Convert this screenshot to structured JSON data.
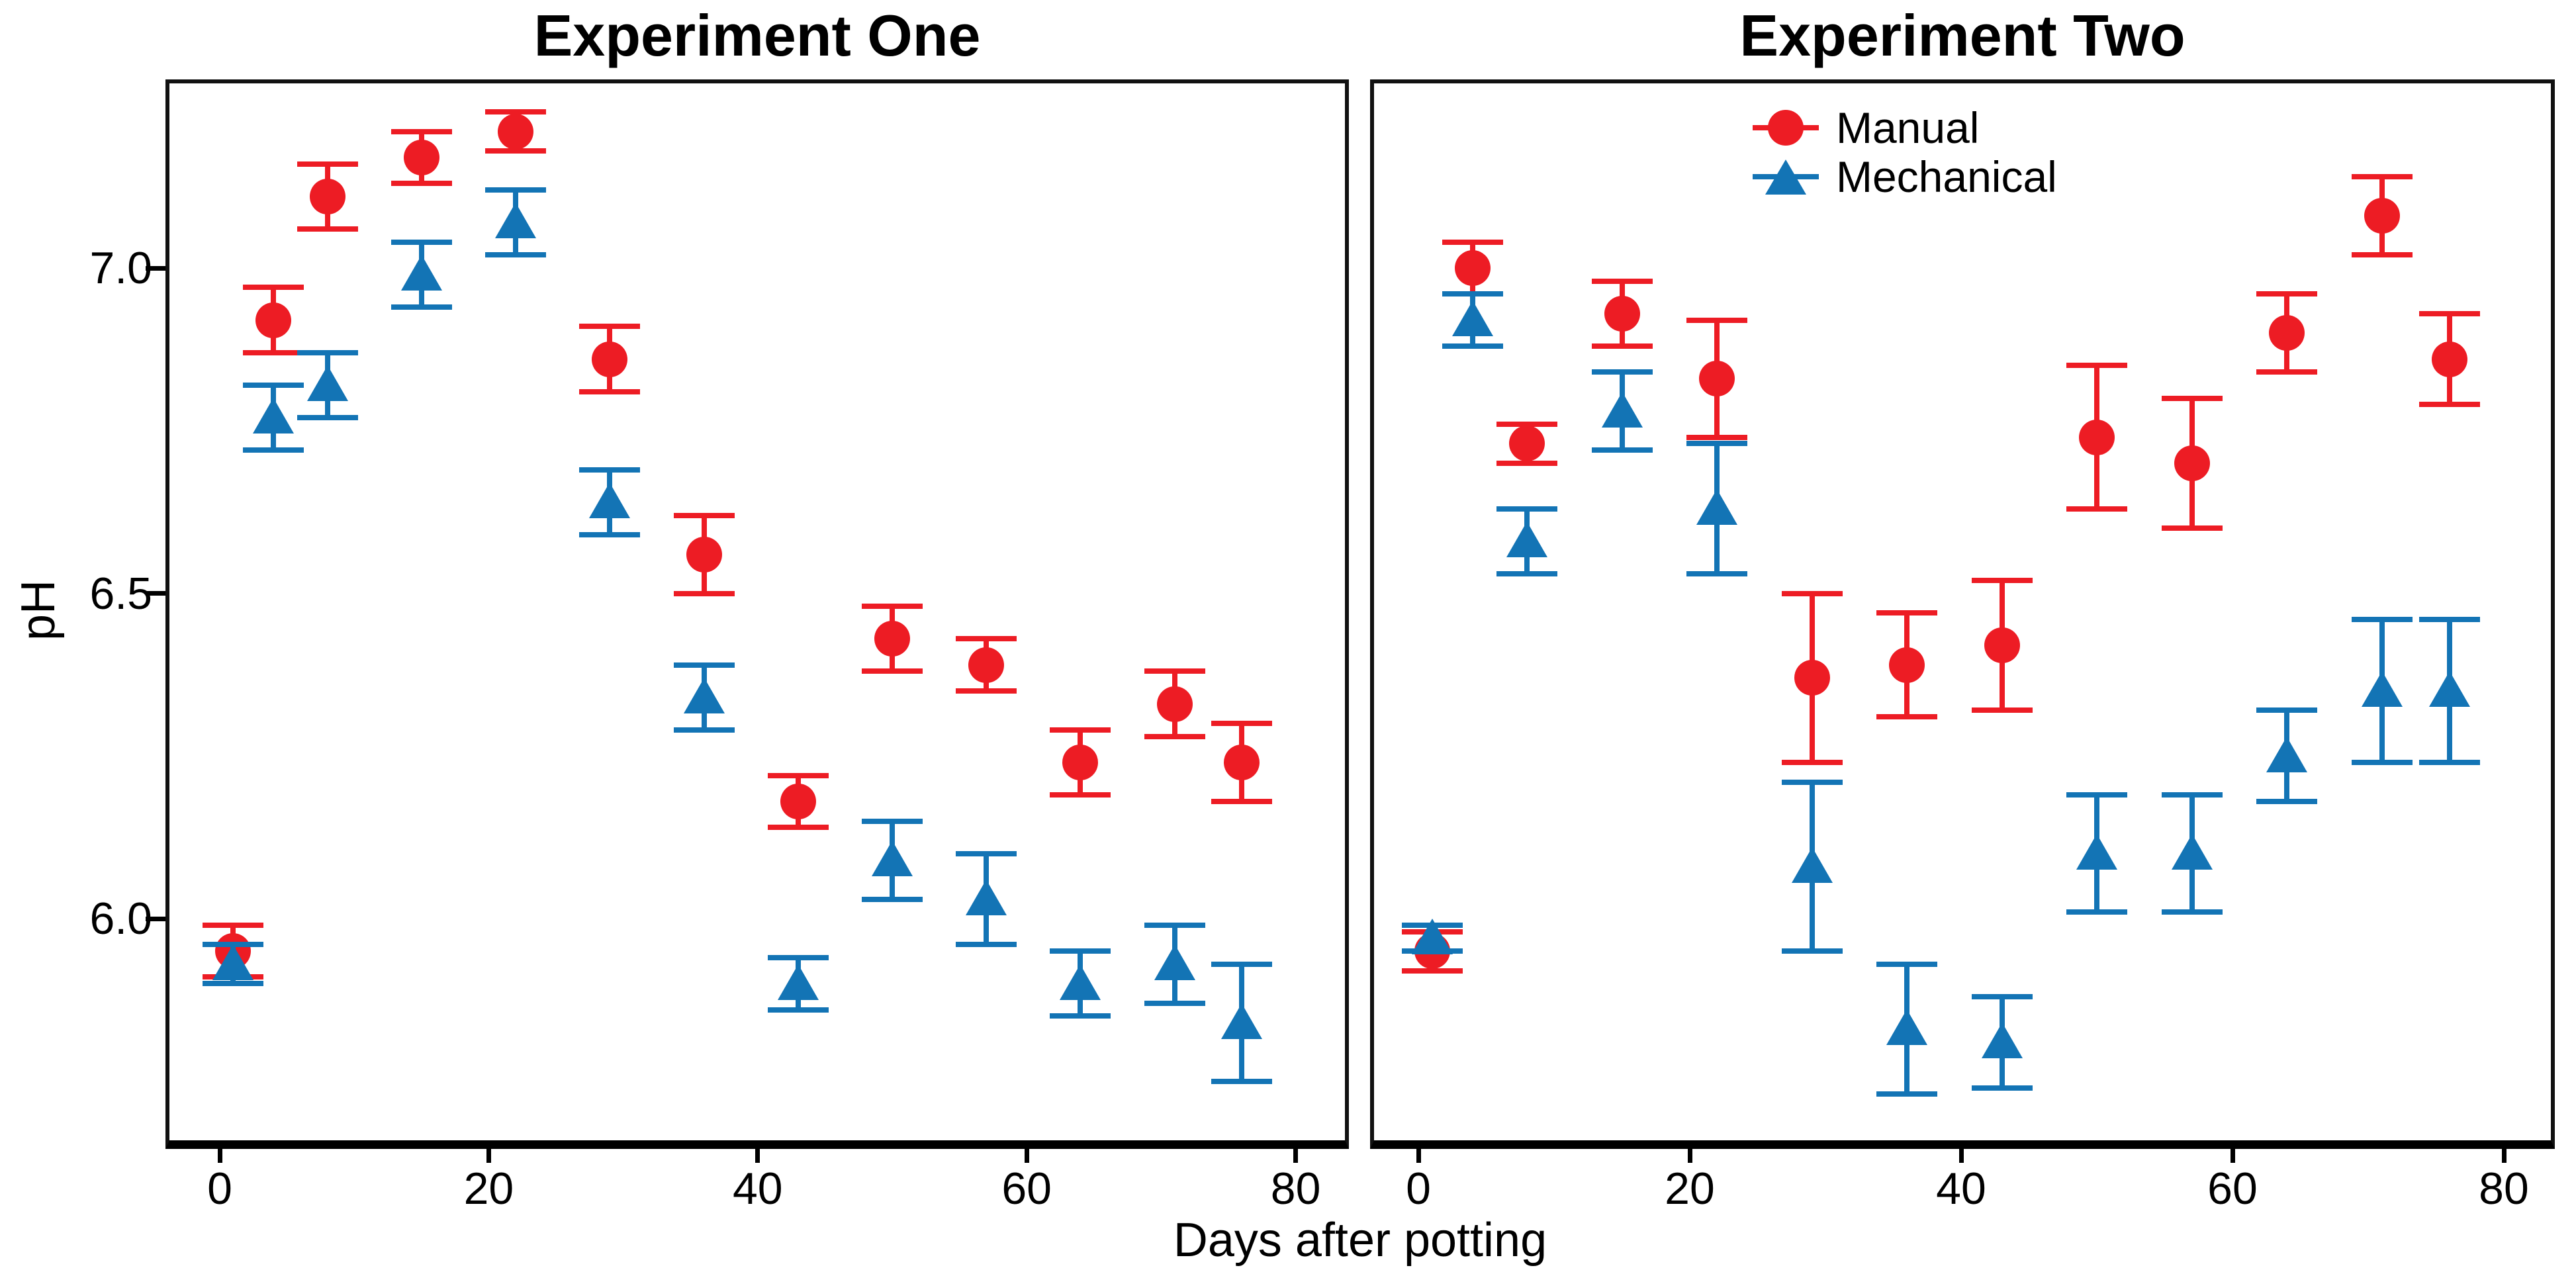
{
  "chart_data": {
    "type": "scatter",
    "title": "",
    "xlabel": "Days after potting",
    "ylabel": "pH",
    "xlim": [
      -4,
      84
    ],
    "ylim": [
      5.66,
      7.29
    ],
    "grid": false,
    "x_ticks": [
      0,
      20,
      40,
      60,
      80
    ],
    "x_tick_labels": [
      "0",
      "20",
      "40",
      "60",
      "80"
    ],
    "y_ticks": [
      6.0,
      6.5,
      7.0
    ],
    "y_tick_labels": [
      "6.0",
      "6.5",
      "7.0"
    ],
    "days": [
      1,
      4,
      8,
      15,
      22,
      29,
      36,
      43,
      50,
      57,
      64,
      71,
      76
    ],
    "colors": {
      "manual": "#ED1C24",
      "mechanical": "#1374B5"
    },
    "legend": {
      "position": "top-inside-right-panel",
      "entries": [
        {
          "label": "Manual",
          "marker": "circle",
          "color": "#ED1C24"
        },
        {
          "label": "Mechanical",
          "marker": "triangle",
          "color": "#1374B5"
        }
      ]
    },
    "facets": [
      {
        "title": "Experiment One",
        "series": [
          {
            "name": "Manual",
            "marker": "circle",
            "color": "#ED1C24",
            "values": [
              5.95,
              6.92,
              7.11,
              7.17,
              7.21,
              6.86,
              6.56,
              6.18,
              6.43,
              6.39,
              6.24,
              6.33,
              6.24
            ],
            "errors": [
              0.04,
              0.05,
              0.05,
              0.04,
              0.03,
              0.05,
              0.06,
              0.04,
              0.05,
              0.04,
              0.05,
              0.05,
              0.06
            ]
          },
          {
            "name": "Mechanical",
            "marker": "triangle",
            "color": "#1374B5",
            "values": [
              5.93,
              6.77,
              6.82,
              6.99,
              7.07,
              6.64,
              6.34,
              5.9,
              6.09,
              6.03,
              5.9,
              5.93,
              5.84
            ],
            "errors": [
              0.03,
              0.05,
              0.05,
              0.05,
              0.05,
              0.05,
              0.05,
              0.04,
              0.06,
              0.07,
              0.05,
              0.06,
              0.09
            ]
          }
        ]
      },
      {
        "title": "Experiment Two",
        "series": [
          {
            "name": "Manual",
            "marker": "circle",
            "color": "#ED1C24",
            "values": [
              5.95,
              7.0,
              6.73,
              6.93,
              6.83,
              6.37,
              6.39,
              6.42,
              6.74,
              6.7,
              6.9,
              7.08,
              6.86
            ],
            "errors": [
              0.03,
              0.04,
              0.03,
              0.05,
              0.09,
              0.13,
              0.08,
              0.1,
              0.11,
              0.1,
              0.06,
              0.06,
              0.07
            ]
          },
          {
            "name": "Mechanical",
            "marker": "triangle",
            "color": "#1374B5",
            "values": [
              5.97,
              6.92,
              6.58,
              6.78,
              6.63,
              6.08,
              5.83,
              5.81,
              6.1,
              6.1,
              6.25,
              6.35,
              6.35
            ],
            "errors": [
              0.02,
              0.04,
              0.05,
              0.06,
              0.1,
              0.13,
              0.1,
              0.07,
              0.09,
              0.09,
              0.07,
              0.11,
              0.11
            ]
          }
        ]
      }
    ]
  }
}
